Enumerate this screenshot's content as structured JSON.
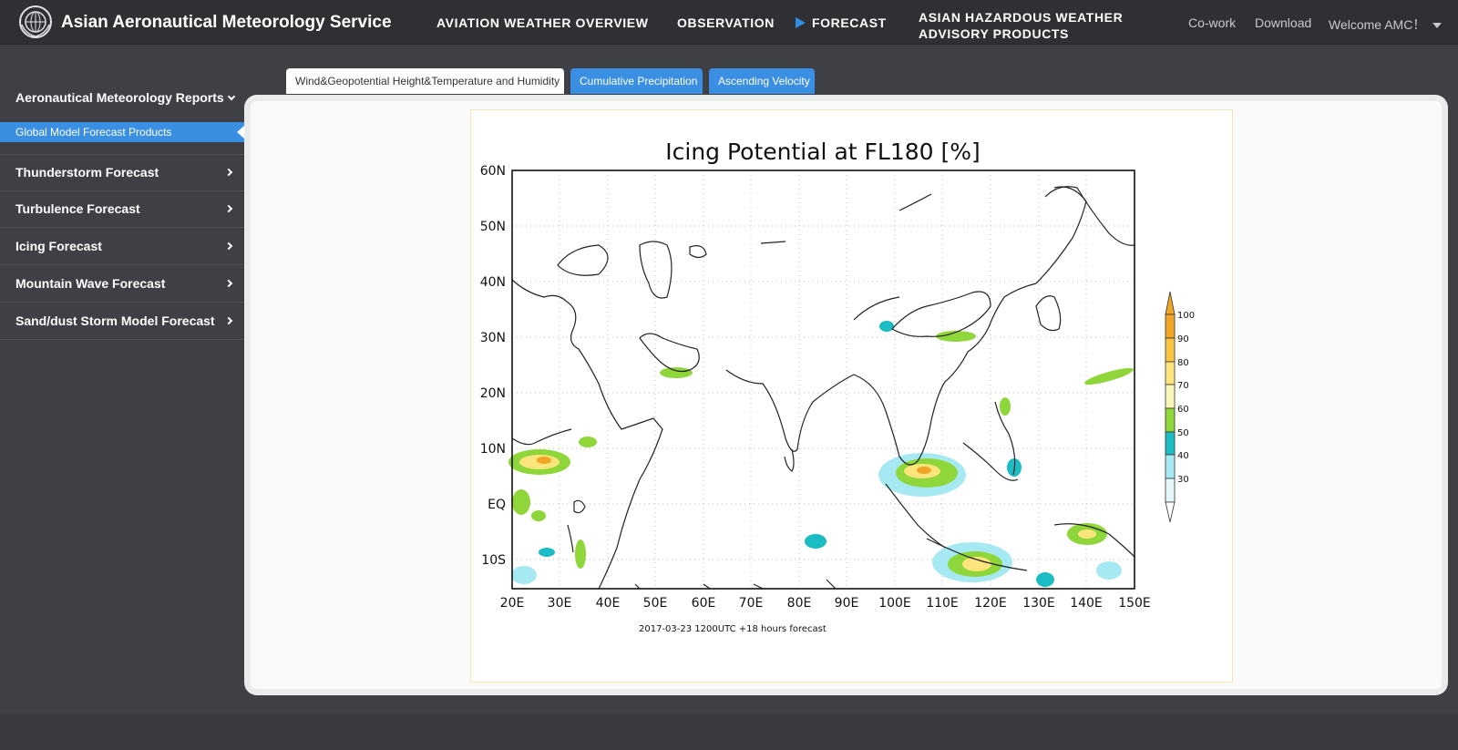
{
  "header": {
    "brand": "Asian Aeronautical Meteorology Service",
    "nav": {
      "overview": "AVIATION WEATHER OVERVIEW",
      "observation": "OBSERVATION",
      "forecast": "FORECAST",
      "hazard_line1": "ASIAN HAZARDOUS WEATHER",
      "hazard_line2": "ADVISORY PRODUCTS"
    },
    "cowork": "Co-work",
    "download": "Download",
    "welcome": "Welcome AMC！"
  },
  "sidebar": {
    "heading": "Aeronautical Meteorology Reports",
    "active_item": "Global Model Forecast Products",
    "items": [
      {
        "label": "Thunderstorm Forecast"
      },
      {
        "label": "Turbulence Forecast"
      },
      {
        "label": "Icing Forecast"
      },
      {
        "label": "Mountain Wave Forecast"
      },
      {
        "label": "Sand/dust Storm Model Forecast"
      }
    ]
  },
  "tabs": [
    {
      "label": "Wind&Geopotential Height&Temperature and Humidity",
      "active": true
    },
    {
      "label": "Cumulative Precipitation",
      "active": false
    },
    {
      "label": "Ascending Velocity",
      "active": false
    }
  ],
  "map": {
    "title": "Icing Potential at FL180 [%]",
    "footer": "2017-03-23 1200UTC  +18 hours forecast",
    "lat_labels": [
      "60N",
      "50N",
      "40N",
      "30N",
      "20N",
      "10N",
      "EQ",
      "10S"
    ],
    "lon_labels": [
      "20E",
      "30E",
      "40E",
      "50E",
      "60E",
      "70E",
      "80E",
      "90E",
      "100E",
      "110E",
      "120E",
      "130E",
      "140E",
      "150E"
    ],
    "colorbar": {
      "labels": [
        "100",
        "90",
        "80",
        "70",
        "60",
        "50",
        "40",
        "30"
      ],
      "colors": [
        "#f0a526",
        "#f8c641",
        "#fde57e",
        "#fbf4b8",
        "#8ed63a",
        "#1cbcc4",
        "#a7e9f2",
        "#e3f7fb"
      ]
    }
  },
  "colors": {
    "accent": "#3b8fe2",
    "topbar": "#2f3033",
    "sidebar": "#3e4045"
  }
}
